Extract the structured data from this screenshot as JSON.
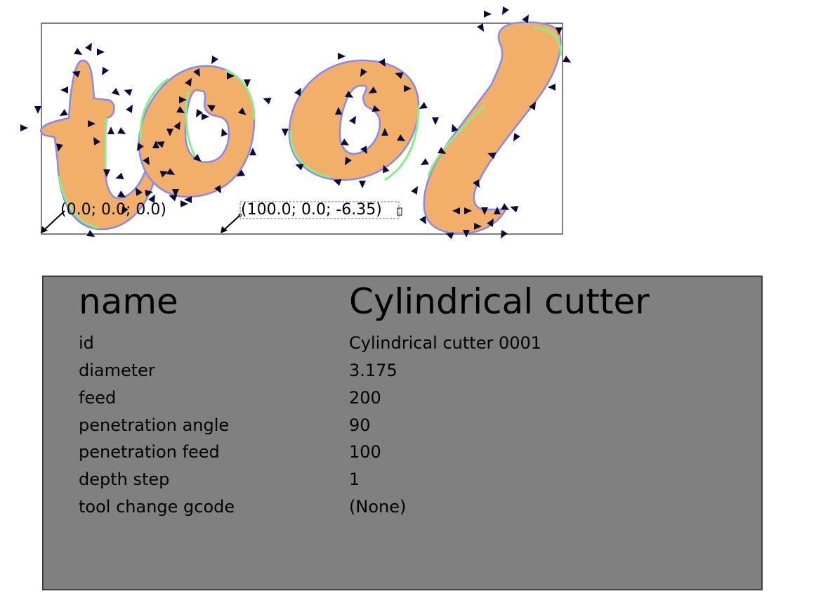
{
  "canvas": {
    "origin_label": "(0.0; 0.0; 0.0)",
    "point_label": "(100.0; 0.0; -6.35)",
    "fill_color": "#f2af6a",
    "stroke_blue": "#8888ee",
    "stroke_green": "#88ee88",
    "arrow_color": "#0b0b3b"
  },
  "tool": {
    "title_key": "name",
    "title_value": "Cylindrical cutter",
    "rows": [
      {
        "key": "id",
        "value": "Cylindrical cutter 0001"
      },
      {
        "key": "diameter",
        "value": "3.175"
      },
      {
        "key": "feed",
        "value": "200"
      },
      {
        "key": "penetration angle",
        "value": "90"
      },
      {
        "key": "penetration feed",
        "value": "100"
      },
      {
        "key": "depth step",
        "value": "1"
      },
      {
        "key": "tool change gcode",
        "value": "(None)"
      }
    ]
  }
}
